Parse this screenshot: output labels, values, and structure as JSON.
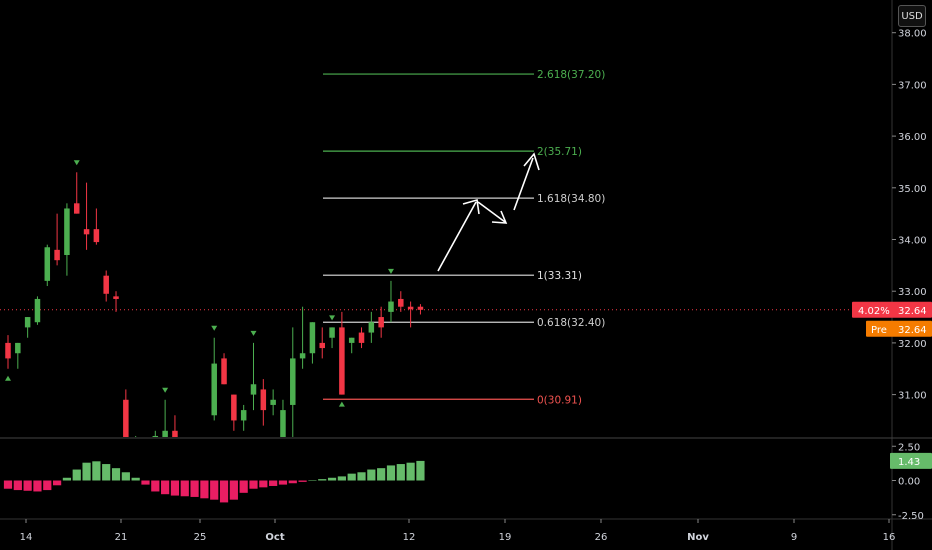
{
  "currency": "USD",
  "price_axis": {
    "ticks": [
      {
        "v": 38,
        "label": "38.00"
      },
      {
        "v": 37,
        "label": "37.00"
      },
      {
        "v": 36,
        "label": "36.00"
      },
      {
        "v": 35,
        "label": "35.00"
      },
      {
        "v": 34,
        "label": "34.00"
      },
      {
        "v": 33,
        "label": "33.00"
      },
      {
        "v": 32,
        "label": "32.00"
      },
      {
        "v": 31,
        "label": "31.00"
      }
    ],
    "last_price_change": "4.02%",
    "last_price": "32.64",
    "premarket_label": "Pre",
    "premarket_price": "32.64",
    "last_price_value": 32.64
  },
  "indicator_axis": {
    "ticks": [
      {
        "v": 2.5,
        "label": "2.50"
      },
      {
        "v": 0,
        "label": "0.00"
      },
      {
        "v": -2.5,
        "label": "-2.50"
      }
    ],
    "current_label": "1.43",
    "current_value": 1.43
  },
  "time_axis": {
    "ticks": [
      {
        "label": "14",
        "bold": false
      },
      {
        "label": "21",
        "bold": false
      },
      {
        "label": "25",
        "bold": false
      },
      {
        "label": "Oct",
        "bold": true
      },
      {
        "label": "12",
        "bold": false
      },
      {
        "label": "19",
        "bold": false
      },
      {
        "label": "26",
        "bold": false
      },
      {
        "label": "Nov",
        "bold": true
      },
      {
        "label": "9",
        "bold": false
      },
      {
        "label": "16",
        "bold": false
      }
    ]
  },
  "fib_levels": [
    {
      "ratio": "2.618",
      "value": 37.2,
      "label": "2.618(37.20)",
      "color": "#4caf50"
    },
    {
      "ratio": "2",
      "value": 35.71,
      "label": "2(35.71)",
      "color": "#4caf50"
    },
    {
      "ratio": "1.618",
      "value": 34.8,
      "label": "1.618(34.80)",
      "color": "#cfcfcf"
    },
    {
      "ratio": "1",
      "value": 33.31,
      "label": "1(33.31)",
      "color": "#e0e0e0"
    },
    {
      "ratio": "0.618",
      "value": 32.4,
      "label": "0.618(32.40)",
      "color": "#cfcfcf"
    },
    {
      "ratio": "0",
      "value": 30.91,
      "label": "0(30.91)",
      "color": "#ef5350"
    }
  ],
  "colors": {
    "up": "#4caf50",
    "down": "#f23645",
    "osc_up": "#66bb6a",
    "osc_down": "#e91e63",
    "price_line": "#f23645",
    "premarket": "#f57c00"
  },
  "chart_data": {
    "type": "candlestick",
    "y_range": [
      30.1,
      38.4
    ],
    "indicator_range": [
      -2.8,
      2.9
    ],
    "candles": [
      {
        "o": 32.0,
        "h": 32.15,
        "l": 31.5,
        "c": 31.7,
        "marker": "up"
      },
      {
        "o": 31.8,
        "h": 32.0,
        "l": 31.5,
        "c": 32.0
      },
      {
        "o": 32.3,
        "h": 32.5,
        "l": 32.1,
        "c": 32.5
      },
      {
        "o": 32.4,
        "h": 32.9,
        "l": 32.35,
        "c": 32.85
      },
      {
        "o": 33.2,
        "h": 33.9,
        "l": 33.1,
        "c": 33.85
      },
      {
        "o": 33.8,
        "h": 34.5,
        "l": 33.5,
        "c": 33.6
      },
      {
        "o": 33.7,
        "h": 34.7,
        "l": 33.3,
        "c": 34.6
      },
      {
        "o": 34.7,
        "h": 35.3,
        "l": 34.5,
        "c": 34.5,
        "marker": "down"
      },
      {
        "o": 34.2,
        "h": 35.1,
        "l": 33.8,
        "c": 34.1
      },
      {
        "o": 34.2,
        "h": 34.6,
        "l": 33.9,
        "c": 33.95
      },
      {
        "o": 33.3,
        "h": 33.4,
        "l": 32.8,
        "c": 32.95
      },
      {
        "o": 32.9,
        "h": 33.0,
        "l": 32.6,
        "c": 32.85
      },
      {
        "o": 30.9,
        "h": 31.1,
        "l": 30.1,
        "c": 30.1
      },
      {
        "o": 30.1,
        "h": 30.2,
        "l": 30.1,
        "c": 30.1
      },
      {
        "o": 30.1,
        "h": 30.1,
        "l": 30.1,
        "c": 30.1
      },
      {
        "o": 30.1,
        "h": 30.3,
        "l": 30.1,
        "c": 30.2
      },
      {
        "o": 30.1,
        "h": 30.9,
        "l": 30.1,
        "c": 30.3,
        "marker": "down"
      },
      {
        "o": 30.3,
        "h": 30.6,
        "l": 30.1,
        "c": 30.1
      },
      {
        "o": 30.1,
        "h": 30.1,
        "l": 30.1,
        "c": 30.1
      },
      {
        "o": 30.1,
        "h": 30.1,
        "l": 30.1,
        "c": 30.1
      },
      {
        "o": 30.1,
        "h": 30.1,
        "l": 30.1,
        "c": 30.1
      },
      {
        "o": 30.6,
        "h": 32.1,
        "l": 30.5,
        "c": 31.6,
        "marker": "down"
      },
      {
        "o": 31.7,
        "h": 31.8,
        "l": 31.2,
        "c": 31.2
      },
      {
        "o": 31.0,
        "h": 31.0,
        "l": 30.3,
        "c": 30.5
      },
      {
        "o": 30.5,
        "h": 30.8,
        "l": 30.3,
        "c": 30.7
      },
      {
        "o": 31.0,
        "h": 32.0,
        "l": 30.7,
        "c": 31.2,
        "marker": "down"
      },
      {
        "o": 31.1,
        "h": 31.3,
        "l": 30.4,
        "c": 30.7
      },
      {
        "o": 30.8,
        "h": 31.1,
        "l": 30.6,
        "c": 30.9
      },
      {
        "o": 30.0,
        "h": 30.9,
        "l": 29.5,
        "c": 30.7
      },
      {
        "o": 30.8,
        "h": 32.3,
        "l": 29.9,
        "c": 31.7
      },
      {
        "o": 31.7,
        "h": 32.7,
        "l": 31.5,
        "c": 31.8
      },
      {
        "o": 31.8,
        "h": 32.4,
        "l": 31.6,
        "c": 32.4
      },
      {
        "o": 32.0,
        "h": 32.3,
        "l": 31.7,
        "c": 31.9
      },
      {
        "o": 32.1,
        "h": 32.3,
        "l": 31.9,
        "c": 32.3,
        "marker": "down"
      },
      {
        "o": 32.3,
        "h": 32.6,
        "l": 31.0,
        "c": 31.0,
        "marker": "up"
      },
      {
        "o": 32.0,
        "h": 32.1,
        "l": 31.8,
        "c": 32.1
      },
      {
        "o": 32.2,
        "h": 32.3,
        "l": 31.9,
        "c": 32.0
      },
      {
        "o": 32.2,
        "h": 32.6,
        "l": 32.0,
        "c": 32.4
      },
      {
        "o": 32.5,
        "h": 32.7,
        "l": 32.1,
        "c": 32.3
      },
      {
        "o": 32.6,
        "h": 33.2,
        "l": 32.4,
        "c": 32.8,
        "marker": "down"
      },
      {
        "o": 32.85,
        "h": 33.0,
        "l": 32.6,
        "c": 32.7
      },
      {
        "o": 32.7,
        "h": 32.8,
        "l": 32.3,
        "c": 32.65
      },
      {
        "o": 32.7,
        "h": 32.75,
        "l": 32.55,
        "c": 32.64
      }
    ],
    "oscillator": [
      -0.6,
      -0.7,
      -0.75,
      -0.8,
      -0.7,
      -0.35,
      0.2,
      0.8,
      1.3,
      1.4,
      1.2,
      0.9,
      0.6,
      0.2,
      -0.3,
      -0.8,
      -1.0,
      -1.1,
      -1.15,
      -1.2,
      -1.3,
      -1.4,
      -1.6,
      -1.4,
      -0.9,
      -0.6,
      -0.5,
      -0.4,
      -0.3,
      -0.2,
      -0.1,
      0.0,
      0.1,
      0.2,
      0.3,
      0.5,
      0.6,
      0.8,
      0.9,
      1.1,
      1.2,
      1.3,
      1.43
    ]
  }
}
